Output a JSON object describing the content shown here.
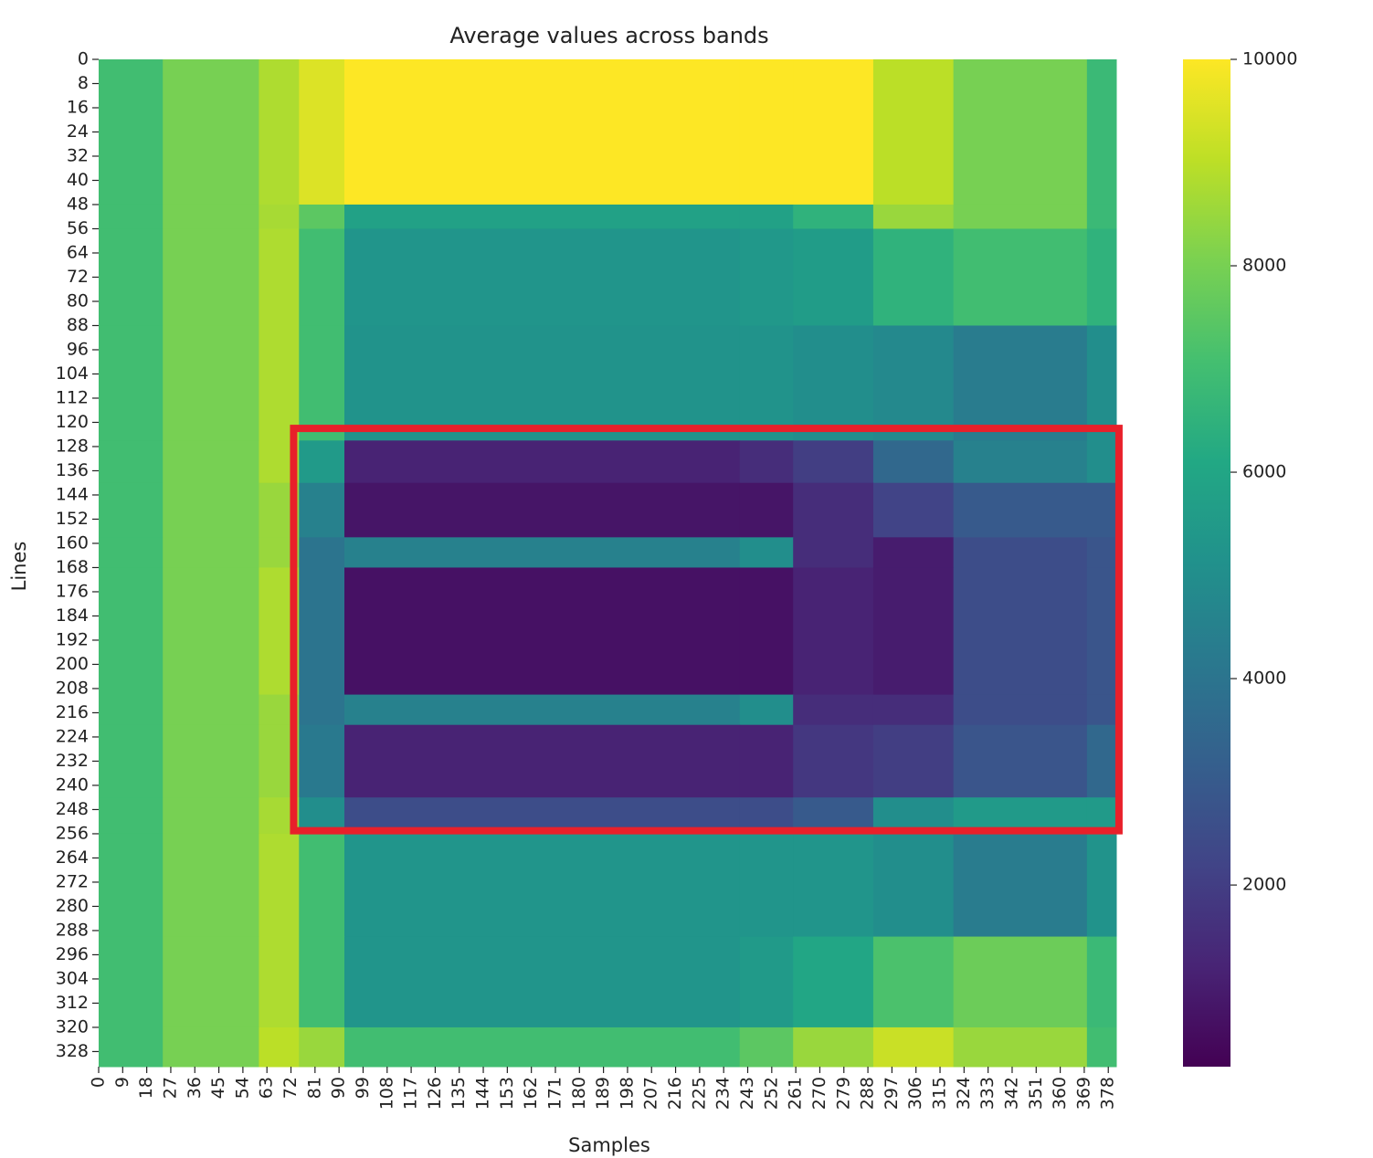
{
  "chart_data": {
    "type": "heatmap",
    "title": "Average values across bands",
    "xlabel": "Samples",
    "ylabel": "Lines",
    "colormap": "viridis",
    "xlim": [
      0,
      381
    ],
    "ylim": [
      0,
      333
    ],
    "xticks": [
      0,
      9,
      18,
      27,
      36,
      45,
      54,
      63,
      72,
      81,
      90,
      99,
      108,
      117,
      126,
      135,
      144,
      153,
      162,
      171,
      180,
      189,
      198,
      207,
      216,
      225,
      234,
      243,
      252,
      261,
      270,
      279,
      288,
      297,
      306,
      315,
      324,
      333,
      342,
      351,
      360,
      369,
      378
    ],
    "yticks": [
      0,
      8,
      16,
      24,
      32,
      40,
      48,
      56,
      64,
      72,
      80,
      88,
      96,
      104,
      112,
      120,
      128,
      136,
      144,
      152,
      160,
      168,
      176,
      184,
      192,
      200,
      208,
      216,
      224,
      232,
      240,
      248,
      256,
      264,
      272,
      280,
      288,
      296,
      304,
      312,
      320,
      328
    ],
    "xbins": [
      0,
      24,
      60,
      75,
      92,
      240,
      260,
      290,
      320,
      370,
      381
    ],
    "ybins": [
      0,
      48,
      56,
      88,
      126,
      140,
      158,
      168,
      210,
      220,
      244,
      256,
      290,
      320,
      333
    ],
    "values": [
      [
        7000,
        8000,
        8800,
        9500,
        10000,
        10000,
        10000,
        9000,
        8000,
        6800
      ],
      [
        7000,
        8000,
        8700,
        7500,
        5800,
        5800,
        6500,
        8500,
        8000,
        6800
      ],
      [
        7000,
        8000,
        8800,
        7000,
        5300,
        5400,
        5600,
        6500,
        7000,
        6500
      ],
      [
        7000,
        8000,
        8800,
        7000,
        5200,
        5200,
        5000,
        4800,
        4300,
        5000
      ],
      [
        7000,
        8000,
        8800,
        5500,
        1200,
        1500,
        2000,
        3500,
        4500,
        5000
      ],
      [
        7000,
        8000,
        8500,
        4500,
        800,
        800,
        1500,
        2200,
        3000,
        3000
      ],
      [
        7000,
        8000,
        8500,
        4000,
        4500,
        5000,
        1500,
        1000,
        2500,
        2800
      ],
      [
        7000,
        8000,
        8800,
        4000,
        700,
        700,
        1200,
        1000,
        2500,
        2800
      ],
      [
        7000,
        8000,
        8500,
        4000,
        4500,
        5000,
        1500,
        1500,
        2500,
        2800
      ],
      [
        7000,
        8000,
        8500,
        4200,
        1200,
        1200,
        1800,
        2000,
        2800,
        3500
      ],
      [
        7000,
        8000,
        8700,
        5000,
        2500,
        2500,
        3000,
        5000,
        5500,
        5500
      ],
      [
        7000,
        8000,
        8800,
        7000,
        5300,
        5300,
        5300,
        5000,
        4300,
        5200
      ],
      [
        7000,
        8000,
        8800,
        7000,
        5300,
        5500,
        6000,
        7200,
        7800,
        6800
      ],
      [
        7000,
        8000,
        9000,
        8500,
        7000,
        7500,
        8500,
        9200,
        8500,
        7000
      ]
    ],
    "clim": [
      240,
      10000
    ],
    "cticks": [
      2000,
      4000,
      6000,
      8000,
      10000
    ],
    "highlight": {
      "x": [
        73,
        382
      ],
      "y": [
        122,
        255
      ],
      "color": "#e8202a"
    }
  }
}
